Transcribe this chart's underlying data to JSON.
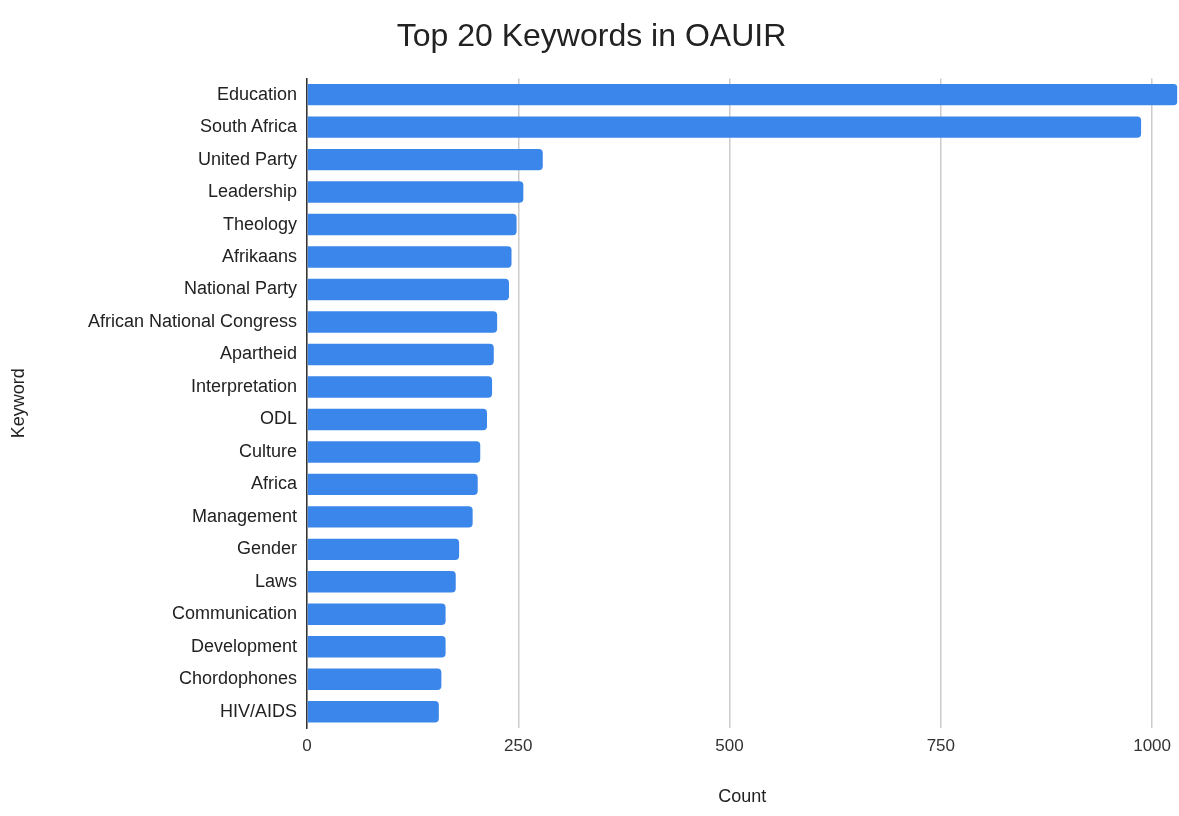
{
  "chart_data": {
    "type": "bar",
    "orientation": "horizontal",
    "title": "Top 20 Keywords in OAUIR",
    "xlabel": "Count",
    "ylabel": "Keyword",
    "categories": [
      "Education",
      "South Africa",
      "United Party",
      "Leadership",
      "Theology",
      "Afrikaans",
      "National Party",
      "African National Congress",
      "Apartheid",
      "Interpretation",
      "ODL",
      "Culture",
      "Africa",
      "Management",
      "Gender",
      "Laws",
      "Communication",
      "Development",
      "Chordophones",
      "HIV/AIDS"
    ],
    "values": [
      1030,
      987,
      279,
      256,
      248,
      242,
      239,
      225,
      221,
      219,
      213,
      205,
      202,
      196,
      180,
      176,
      164,
      164,
      159,
      156
    ],
    "color": "#3b86ea",
    "xlim": [
      0,
      1030
    ],
    "xticks": [
      0,
      250,
      500,
      750,
      1000
    ],
    "grid": "x",
    "legend": false
  }
}
